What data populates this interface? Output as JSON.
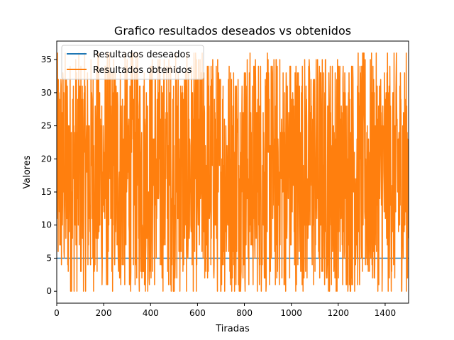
{
  "chart_data": {
    "type": "line",
    "title": "Grafico resultados deseados vs obtenidos",
    "xlabel": "Tiradas",
    "ylabel": "Valores",
    "xlim": [
      0,
      1500
    ],
    "ylim": [
      -1.8,
      37.8
    ],
    "xticks": [
      0,
      200,
      400,
      600,
      800,
      1000,
      1200,
      1400
    ],
    "yticks": [
      0,
      5,
      10,
      15,
      20,
      25,
      30,
      35
    ],
    "grid": false,
    "legend": "top-left",
    "series": [
      {
        "name": "Resultados deseados",
        "color": "#1f77b4",
        "x": [
          0,
          1500
        ],
        "y": [
          5,
          5
        ]
      },
      {
        "name": "Resultados obtenidos",
        "color": "#ff7f0e",
        "n_points": 1500,
        "range": [
          0,
          36
        ],
        "note": "random integer outcome per tirada between 0 and 36"
      }
    ]
  }
}
